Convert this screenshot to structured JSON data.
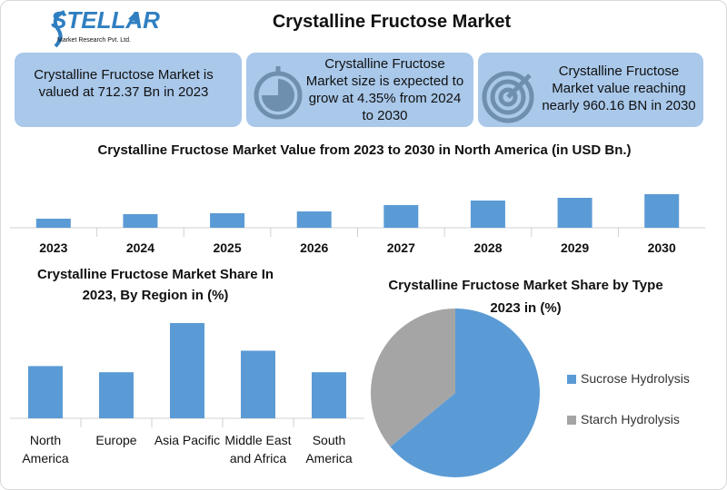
{
  "header": {
    "logo": "STELLAR",
    "logo_sub": "Market Research Pvt. Ltd.",
    "title": "Crystalline Fructose Market"
  },
  "info_boxes": [
    "Crystalline Fructose Market is valued at 712.37 Bn in 2023",
    "Crystalline Fructose Market size is expected to grow at 4.35% from 2024 to 2030",
    "Crystalline Fructose Market value reaching nearly 960.16 BN in 2030"
  ],
  "chart_data": [
    {
      "type": "bar",
      "title": "Crystalline Fructose Market Value from 2023 to 2030 in North America (in USD Bn.)",
      "categories": [
        "2023",
        "2024",
        "2025",
        "2026",
        "2027",
        "2028",
        "2029",
        "2030"
      ],
      "values": [
        10,
        15,
        16,
        18,
        25,
        30,
        33,
        37
      ],
      "color": "#5b9bd5"
    },
    {
      "type": "bar",
      "title": "Crystalline Fructose Market Share In 2023, By Region in (%)",
      "categories": [
        "North America",
        "Europe",
        "Asia Pacific",
        "Middle East and Africa",
        "South America"
      ],
      "values": [
        17,
        15,
        31,
        22,
        15
      ],
      "color": "#5b9bd5"
    },
    {
      "type": "pie",
      "title": "Crystalline Fructose Market Share by Type 2023 in (%)",
      "categories": [
        "Sucrose Hydrolysis",
        "Starch Hydrolysis"
      ],
      "values": [
        64,
        36
      ],
      "colors": [
        "#5b9bd5",
        "#a5a5a5"
      ],
      "legend": "right"
    }
  ]
}
